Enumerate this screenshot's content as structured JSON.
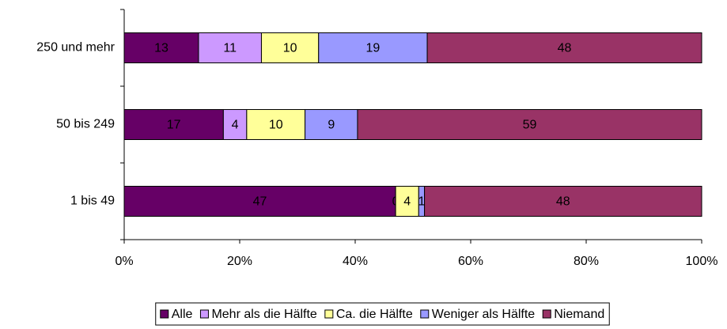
{
  "chart_data": {
    "type": "stacked-bar-100",
    "categories": [
      "250 und mehr",
      "50 bis 249",
      "1 bis 49"
    ],
    "series": [
      {
        "name": "Alle",
        "color": "#660066",
        "values": [
          13,
          17,
          47
        ]
      },
      {
        "name": "Mehr als die Hälfte",
        "color": "#CC99FF",
        "values": [
          11,
          4,
          0
        ]
      },
      {
        "name": "Ca. die Hälfte",
        "color": "#FFFF99",
        "values": [
          10,
          10,
          4
        ]
      },
      {
        "name": "Weniger als Hälfte",
        "color": "#9999FF",
        "values": [
          19,
          9,
          1
        ]
      },
      {
        "name": "Niemand",
        "color": "#993366",
        "values": [
          48,
          59,
          48
        ]
      }
    ],
    "xlim": [
      0,
      100
    ],
    "xticks": [
      {
        "value": 0,
        "label": "0%"
      },
      {
        "value": 20,
        "label": "20%"
      },
      {
        "value": 40,
        "label": "40%"
      },
      {
        "value": 60,
        "label": "60%"
      },
      {
        "value": 80,
        "label": "80%"
      },
      {
        "value": 100,
        "label": "100%"
      }
    ],
    "legend": "bottom"
  }
}
